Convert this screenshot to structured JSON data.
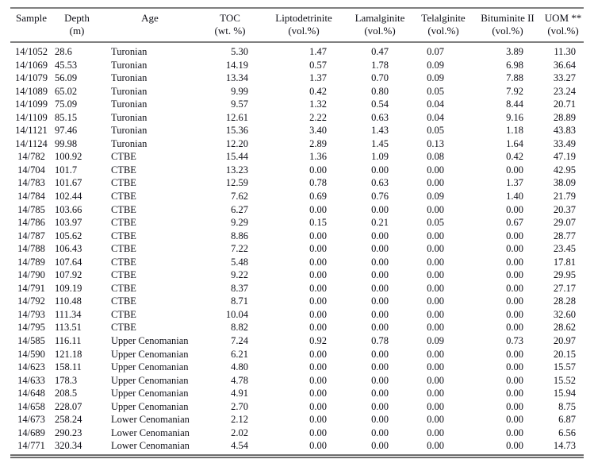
{
  "colors": {
    "background": "#ffffff",
    "text": "#0e0e16",
    "rule": "#7f7f7f"
  },
  "table": {
    "columns": [
      {
        "key": "sample",
        "label": "Sample",
        "unit": ""
      },
      {
        "key": "depth",
        "label": "Depth",
        "unit": "(m)"
      },
      {
        "key": "age",
        "label": "Age",
        "unit": ""
      },
      {
        "key": "toc",
        "label": "TOC",
        "unit": "(wt. %)"
      },
      {
        "key": "liptodetrinite",
        "label": "Liptodetrinite",
        "unit": "(vol.%)"
      },
      {
        "key": "lamalginite",
        "label": "Lamalginite",
        "unit": "(vol.%)"
      },
      {
        "key": "telalginite",
        "label": "Telalginite",
        "unit": "(vol.%)"
      },
      {
        "key": "bituminite-ii",
        "label": "Bituminite II",
        "unit": "(vol.%)"
      },
      {
        "key": "uom",
        "label": "UOM **",
        "unit": "(vol.%)"
      }
    ],
    "rows": [
      [
        "14/1052",
        "28.6",
        "Turonian",
        "5.30",
        "1.47",
        "0.47",
        "0.07",
        "3.89",
        "11.30"
      ],
      [
        "14/1069",
        "45.53",
        "Turonian",
        "14.19",
        "0.57",
        "1.78",
        "0.09",
        "6.98",
        "36.64"
      ],
      [
        "14/1079",
        "56.09",
        "Turonian",
        "13.34",
        "1.37",
        "0.70",
        "0.09",
        "7.88",
        "33.27"
      ],
      [
        "14/1089",
        "65.02",
        "Turonian",
        "9.99",
        "0.42",
        "0.80",
        "0.05",
        "7.92",
        "23.24"
      ],
      [
        "14/1099",
        "75.09",
        "Turonian",
        "9.57",
        "1.32",
        "0.54",
        "0.04",
        "8.44",
        "20.71"
      ],
      [
        "14/1109",
        "85.15",
        "Turonian",
        "12.61",
        "2.22",
        "0.63",
        "0.04",
        "9.16",
        "28.89"
      ],
      [
        "14/1121",
        "97.46",
        "Turonian",
        "15.36",
        "3.40",
        "1.43",
        "0.05",
        "1.18",
        "43.83"
      ],
      [
        "14/1124",
        "99.98",
        "Turonian",
        "12.20",
        "2.89",
        "1.45",
        "0.13",
        "1.64",
        "33.49"
      ],
      [
        "14/782",
        "100.92",
        "CTBE",
        "15.44",
        "1.36",
        "1.09",
        "0.08",
        "0.42",
        "47.19"
      ],
      [
        "14/704",
        "101.7",
        "CTBE",
        "13.23",
        "0.00",
        "0.00",
        "0.00",
        "0.00",
        "42.95"
      ],
      [
        "14/783",
        "101.67",
        "CTBE",
        "12.59",
        "0.78",
        "0.63",
        "0.00",
        "1.37",
        "38.09"
      ],
      [
        "14/784",
        "102.44",
        "CTBE",
        "7.62",
        "0.69",
        "0.76",
        "0.09",
        "1.40",
        "21.79"
      ],
      [
        "14/785",
        "103.66",
        "CTBE",
        "6.27",
        "0.00",
        "0.00",
        "0.00",
        "0.00",
        "20.37"
      ],
      [
        "14/786",
        "103.97",
        "CTBE",
        "9.29",
        "0.15",
        "0.21",
        "0.05",
        "0.67",
        "29.07"
      ],
      [
        "14/787",
        "105.62",
        "CTBE",
        "8.86",
        "0.00",
        "0.00",
        "0.00",
        "0.00",
        "28.77"
      ],
      [
        "14/788",
        "106.43",
        "CTBE",
        "7.22",
        "0.00",
        "0.00",
        "0.00",
        "0.00",
        "23.45"
      ],
      [
        "14/789",
        "107.64",
        "CTBE",
        "5.48",
        "0.00",
        "0.00",
        "0.00",
        "0.00",
        "17.81"
      ],
      [
        "14/790",
        "107.92",
        "CTBE",
        "9.22",
        "0.00",
        "0.00",
        "0.00",
        "0.00",
        "29.95"
      ],
      [
        "14/791",
        "109.19",
        "CTBE",
        "8.37",
        "0.00",
        "0.00",
        "0.00",
        "0.00",
        "27.17"
      ],
      [
        "14/792",
        "110.48",
        "CTBE",
        "8.71",
        "0.00",
        "0.00",
        "0.00",
        "0.00",
        "28.28"
      ],
      [
        "14/793",
        "111.34",
        "CTBE",
        "10.04",
        "0.00",
        "0.00",
        "0.00",
        "0.00",
        "32.60"
      ],
      [
        "14/795",
        "113.51",
        "CTBE",
        "8.82",
        "0.00",
        "0.00",
        "0.00",
        "0.00",
        "28.62"
      ],
      [
        "14/585",
        "116.11",
        "Upper Cenomanian",
        "7.24",
        "0.92",
        "0.78",
        "0.09",
        "0.73",
        "20.97"
      ],
      [
        "14/590",
        "121.18",
        "Upper Cenomanian",
        "6.21",
        "0.00",
        "0.00",
        "0.00",
        "0.00",
        "20.15"
      ],
      [
        "14/623",
        "158.11",
        "Upper Cenomanian",
        "4.80",
        "0.00",
        "0.00",
        "0.00",
        "0.00",
        "15.57"
      ],
      [
        "14/633",
        "178.3",
        "Upper Cenomanian",
        "4.78",
        "0.00",
        "0.00",
        "0.00",
        "0.00",
        "15.52"
      ],
      [
        "14/648",
        "208.5",
        "Upper Cenomanian",
        "4.91",
        "0.00",
        "0.00",
        "0.00",
        "0.00",
        "15.94"
      ],
      [
        "14/658",
        "228.07",
        "Upper Cenomanian",
        "2.70",
        "0.00",
        "0.00",
        "0.00",
        "0.00",
        "8.75"
      ],
      [
        "14/673",
        "258.24",
        "Lower Cenomanian",
        "2.12",
        "0.00",
        "0.00",
        "0.00",
        "0.00",
        "6.87"
      ],
      [
        "14/689",
        "290.23",
        "Lower Cenomanian",
        "2.02",
        "0.00",
        "0.00",
        "0.00",
        "0.00",
        "6.56"
      ],
      [
        "14/771",
        "320.34",
        "Lower Cenomanian",
        "4.54",
        "0.00",
        "0.00",
        "0.00",
        "0.00",
        "14.73"
      ]
    ]
  }
}
